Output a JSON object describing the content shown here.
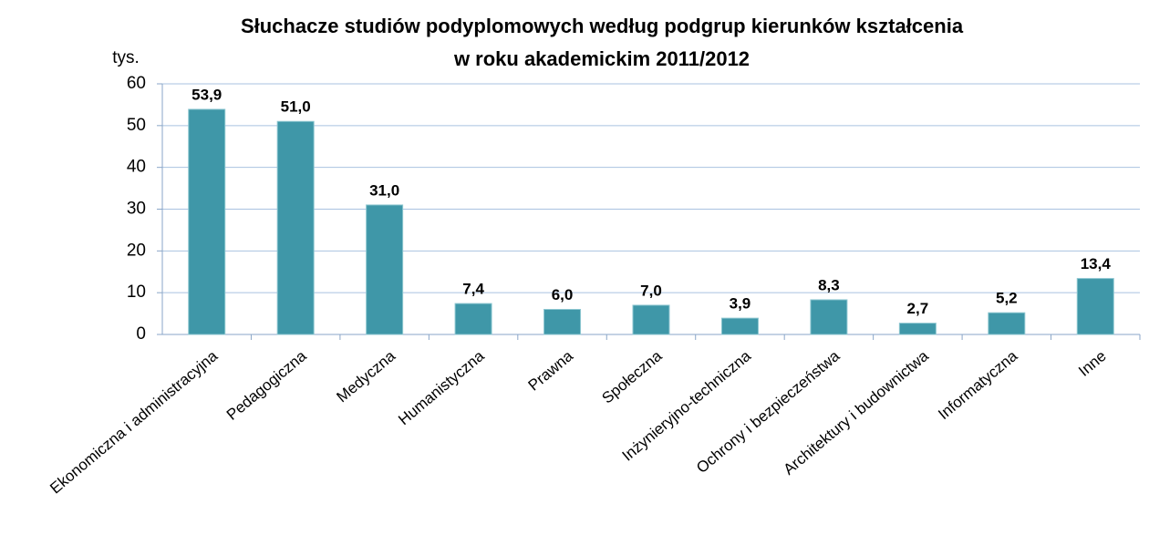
{
  "chart_data": {
    "type": "bar",
    "title": [
      "Słuchacze studiów podyplomowych według podgrup kierunków kształcenia",
      "w roku akademickim 2011/2012"
    ],
    "y_label": "tys.",
    "categories": [
      "Ekonomiczna i administracyjna",
      "Pedagogiczna",
      "Medyczna",
      "Humanistyczna",
      "Prawna",
      "Społeczna",
      "Inżynieryjno-techniczna",
      "Ochrony i bezpieczeństwa",
      "Architektury i budownictwa",
      "Informatyczna",
      "Inne"
    ],
    "values": [
      53.9,
      51.0,
      31.0,
      7.4,
      6.0,
      7.0,
      3.9,
      8.3,
      2.7,
      5.2,
      13.4
    ],
    "value_labels": [
      "53,9",
      "51,0",
      "31,0",
      "7,4",
      "6,0",
      "7,0",
      "3,9",
      "8,3",
      "2,7",
      "5,2",
      "13,4"
    ],
    "color": "#3f97a8",
    "ylim": [
      0,
      60
    ],
    "yticks": [
      0,
      10,
      20,
      30,
      40,
      50,
      60
    ],
    "grid": true
  }
}
